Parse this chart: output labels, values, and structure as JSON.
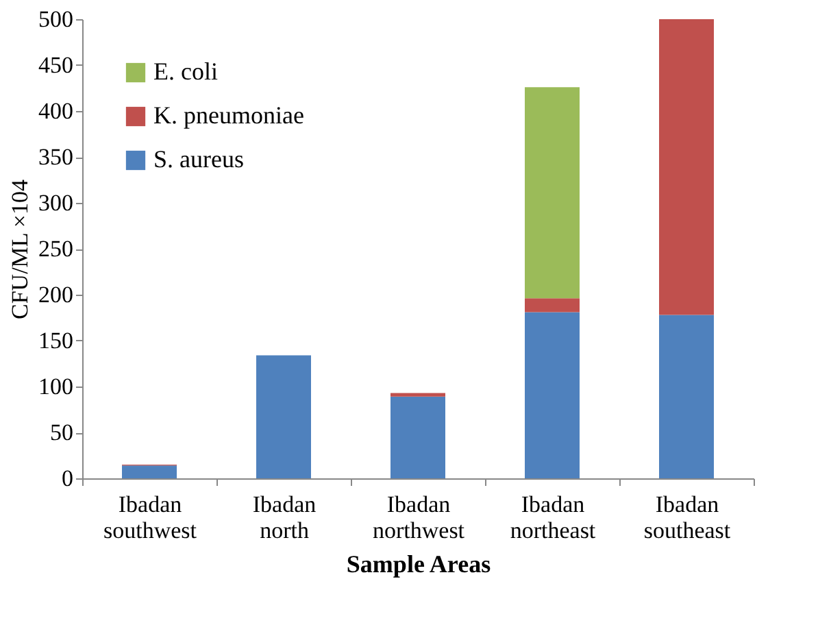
{
  "chart_data": {
    "type": "bar",
    "stacked": true,
    "xlabel": "Sample Areas",
    "ylabel": "CFU/ML ×104",
    "categories": [
      "Ibadan southwest",
      "Ibadan north",
      "Ibadan northwest",
      "Ibadan northeast",
      "Ibadan southeast"
    ],
    "series": [
      {
        "name": "S. aureus",
        "color": "#4f81bd",
        "values": [
          14,
          134,
          89,
          181,
          178
        ]
      },
      {
        "name": "K. pneumoniae",
        "color": "#c0504d",
        "values": [
          1,
          0,
          4,
          15,
          322
        ]
      },
      {
        "name": "E. coli",
        "color": "#9bbb59",
        "values": [
          0,
          0,
          0,
          230,
          0
        ]
      }
    ],
    "ylim": [
      0,
      500
    ],
    "yticks": [
      0,
      50,
      100,
      150,
      200,
      250,
      300,
      350,
      400,
      450,
      500
    ],
    "grid": false,
    "legend": "top left"
  }
}
